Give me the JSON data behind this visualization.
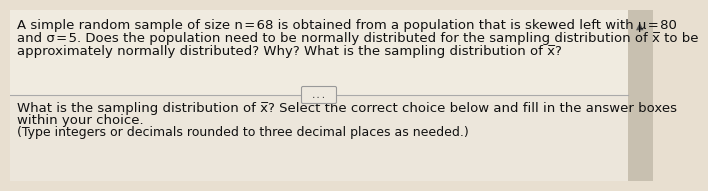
{
  "bg_color": "#e8dfd0",
  "top_panel_color": "#f0ebe0",
  "bot_panel_color": "#ece6db",
  "text_line1": "A simple random sample of size n = 68 is obtained from a population that is skewed left with μ = 80",
  "text_line2": "and σ = 5. Does the population need to be normally distributed for the sampling distribution of x̅ to be",
  "text_line3": "approximately normally distributed? Why? What is the sampling distribution of x̅?",
  "divider_label": "...",
  "text_line4": "What is the sampling distribution of x̅? Select the correct choice below and fill in the answer boxes",
  "text_line5": "within your choice.",
  "text_line6": "(Type integers or decimals rounded to three decimal places as needed.)",
  "font_size_main": 9.5,
  "font_size_small": 9.5,
  "text_color": "#111111",
  "divider_color": "#aaaaaa",
  "scrollbar_bg": "#c8c0b0",
  "scrollbar_arrow_color": "#555555",
  "btn_edge_color": "#999999",
  "btn_face_color": "#ede8de"
}
